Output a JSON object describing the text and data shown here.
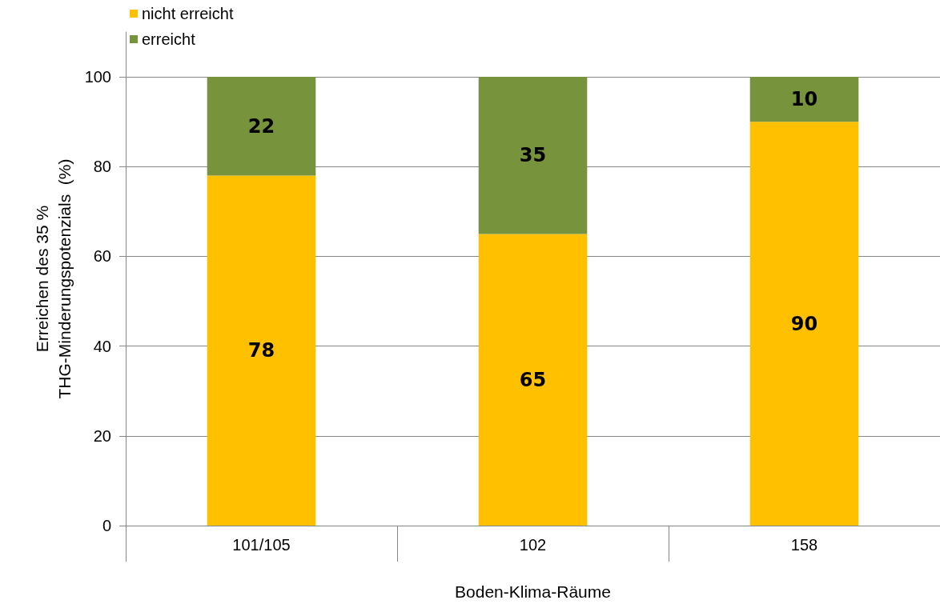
{
  "chart_data": {
    "type": "bar",
    "stacked": true,
    "xlabel": "Boden-Klima-Räume",
    "ylabel": "Erreichen des 35 %\nTHG-Minderungspotenzials  (%)",
    "categories": [
      "101/105",
      "102",
      "158"
    ],
    "series": [
      {
        "name": "nicht erreicht",
        "color": "#ffc000",
        "values": [
          78,
          65,
          90
        ]
      },
      {
        "name": "erreicht",
        "color": "#77933c",
        "values": [
          22,
          35,
          10
        ]
      }
    ],
    "ylim": [
      0,
      110
    ],
    "yticks": [
      0,
      20,
      40,
      60,
      80,
      100
    ],
    "grid": "y",
    "legend": "top left",
    "data_labels": true
  }
}
